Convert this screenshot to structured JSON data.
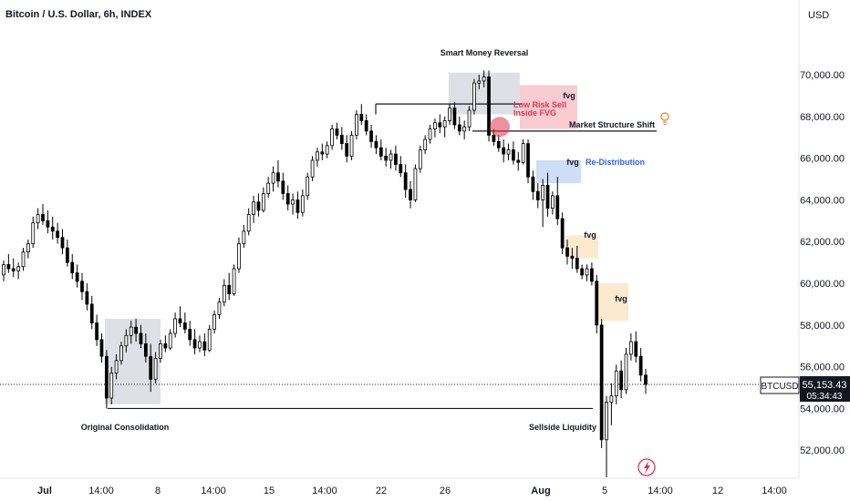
{
  "header": {
    "title": "Bitcoin / U.S. Dollar, 6h, INDEX",
    "currency": "USD"
  },
  "price_tag": {
    "symbol": "BTCUSD",
    "price": "55,153.43",
    "countdown": "05:34:43"
  },
  "colors": {
    "candle": "#000000",
    "fvg_red": "#f7c3c8",
    "fvg_blue": "#c5d7f7",
    "fvg_orange": "#fce6c8",
    "zone_gray": "#d8dbe0",
    "red": "#e0344d",
    "blue": "#2962ff",
    "orange": "#f57c1f"
  },
  "chart_data": {
    "type": "candlestick",
    "title": "Bitcoin / U.S. Dollar, 6h, INDEX",
    "ylim": [
      50600,
      72000
    ],
    "y_ticks": [
      "70,000.00",
      "68,000.00",
      "66,000.00",
      "64,000.00",
      "62,000.00",
      "60,000.00",
      "58,000.00",
      "56,000.00",
      "54,000.00",
      "52,000.00"
    ],
    "y_tick_values": [
      70000,
      68000,
      66000,
      64000,
      62000,
      60000,
      58000,
      56000,
      54000,
      52000
    ],
    "x_ticks": [
      "Jul",
      "14:00",
      "8",
      "14:00",
      "15",
      "14:00",
      "22",
      "26",
      "Aug",
      "5",
      "14:00",
      "12",
      "14:00"
    ],
    "current_price": 55153.43,
    "candles": [
      [
        60400,
        61100,
        60100,
        60900
      ],
      [
        60900,
        61400,
        60500,
        60700
      ],
      [
        60700,
        61200,
        60300,
        60600
      ],
      [
        60600,
        61000,
        60200,
        60800
      ],
      [
        60800,
        61700,
        60600,
        61500
      ],
      [
        61500,
        62100,
        61200,
        61900
      ],
      [
        61900,
        63200,
        61700,
        62900
      ],
      [
        62900,
        63600,
        62600,
        63300
      ],
      [
        63300,
        63800,
        62800,
        63000
      ],
      [
        63000,
        63500,
        62400,
        62700
      ],
      [
        62700,
        63200,
        62100,
        62500
      ],
      [
        62500,
        62900,
        61900,
        62200
      ],
      [
        62200,
        62600,
        61400,
        61700
      ],
      [
        61700,
        62100,
        60800,
        61000
      ],
      [
        61000,
        61400,
        60200,
        60500
      ],
      [
        60500,
        60900,
        59800,
        60100
      ],
      [
        60100,
        60500,
        59200,
        59600
      ],
      [
        59600,
        60000,
        58700,
        59000
      ],
      [
        59000,
        59400,
        57800,
        58100
      ],
      [
        58100,
        58500,
        57000,
        57300
      ],
      [
        57300,
        57600,
        56200,
        56500
      ],
      [
        56500,
        56800,
        54000,
        54500
      ],
      [
        54500,
        56000,
        54200,
        55700
      ],
      [
        55700,
        56600,
        55400,
        56300
      ],
      [
        56300,
        57200,
        56100,
        57000
      ],
      [
        57000,
        57800,
        56700,
        57500
      ],
      [
        57500,
        58200,
        57100,
        57900
      ],
      [
        57900,
        58300,
        57200,
        57600
      ],
      [
        57600,
        58000,
        56900,
        57100
      ],
      [
        57100,
        57600,
        56200,
        56500
      ],
      [
        56500,
        57100,
        54800,
        55400
      ],
      [
        55400,
        56700,
        55200,
        56400
      ],
      [
        56400,
        57300,
        56200,
        57100
      ],
      [
        57100,
        57500,
        56700,
        56900
      ],
      [
        56900,
        57800,
        56800,
        57600
      ],
      [
        57600,
        58600,
        57400,
        58300
      ],
      [
        58300,
        58900,
        57900,
        58100
      ],
      [
        58100,
        58600,
        57600,
        57800
      ],
      [
        57800,
        58200,
        57000,
        57300
      ],
      [
        57300,
        57800,
        56600,
        56900
      ],
      [
        56900,
        57500,
        56700,
        57200
      ],
      [
        57200,
        57600,
        56500,
        56800
      ],
      [
        56800,
        58000,
        56700,
        57800
      ],
      [
        57800,
        58700,
        57600,
        58500
      ],
      [
        58500,
        59300,
        58300,
        59100
      ],
      [
        59100,
        60200,
        58900,
        59900
      ],
      [
        59900,
        60500,
        59200,
        59500
      ],
      [
        59500,
        60900,
        59400,
        60700
      ],
      [
        60700,
        62200,
        60500,
        61900
      ],
      [
        61900,
        62800,
        61700,
        62500
      ],
      [
        62500,
        63600,
        62300,
        63300
      ],
      [
        63300,
        64200,
        62900,
        63900
      ],
      [
        63900,
        64300,
        63200,
        63500
      ],
      [
        63500,
        64600,
        63400,
        64300
      ],
      [
        64300,
        65100,
        64100,
        64800
      ],
      [
        64800,
        65600,
        64400,
        65300
      ],
      [
        65300,
        65900,
        64600,
        64900
      ],
      [
        64900,
        65300,
        64000,
        64300
      ],
      [
        64300,
        64700,
        63500,
        63800
      ],
      [
        63800,
        64300,
        63300,
        64000
      ],
      [
        64000,
        64400,
        63100,
        63400
      ],
      [
        63400,
        64500,
        63200,
        64200
      ],
      [
        64200,
        65300,
        64000,
        65100
      ],
      [
        65100,
        66100,
        64900,
        65900
      ],
      [
        65900,
        66500,
        65600,
        66300
      ],
      [
        66300,
        66700,
        65900,
        66200
      ],
      [
        66200,
        66800,
        66000,
        66600
      ],
      [
        66600,
        67600,
        66400,
        67400
      ],
      [
        67400,
        67700,
        66900,
        67100
      ],
      [
        67100,
        67500,
        66400,
        66700
      ],
      [
        66700,
        67100,
        65800,
        66100
      ],
      [
        66100,
        67300,
        65900,
        67100
      ],
      [
        67100,
        68300,
        66900,
        68100
      ],
      [
        68100,
        68600,
        67600,
        67800
      ],
      [
        67800,
        68100,
        67100,
        67300
      ],
      [
        67300,
        67600,
        66500,
        66800
      ],
      [
        66800,
        67100,
        66200,
        66500
      ],
      [
        66500,
        66900,
        65900,
        66100
      ],
      [
        66100,
        66500,
        65600,
        65900
      ],
      [
        65900,
        66400,
        65500,
        66200
      ],
      [
        66200,
        66600,
        65400,
        65700
      ],
      [
        65700,
        66100,
        65100,
        65300
      ],
      [
        65300,
        65700,
        64100,
        64500
      ],
      [
        64500,
        64900,
        63600,
        64000
      ],
      [
        64000,
        65700,
        63900,
        65500
      ],
      [
        65500,
        66600,
        65300,
        66400
      ],
      [
        66400,
        67100,
        66200,
        66900
      ],
      [
        66900,
        67600,
        66700,
        67400
      ],
      [
        67400,
        67900,
        67000,
        67700
      ],
      [
        67700,
        68100,
        67200,
        67500
      ],
      [
        67500,
        68000,
        67000,
        67800
      ],
      [
        67800,
        68600,
        67600,
        68400
      ],
      [
        68400,
        68700,
        67400,
        67600
      ],
      [
        67600,
        68000,
        67100,
        67300
      ],
      [
        67300,
        67800,
        66900,
        67500
      ],
      [
        67500,
        68500,
        67300,
        68300
      ],
      [
        68300,
        69800,
        68100,
        69600
      ],
      [
        69600,
        70000,
        69300,
        69700
      ],
      [
        69700,
        70200,
        69400,
        69900
      ],
      [
        69900,
        70200,
        66800,
        67100
      ],
      [
        67100,
        67400,
        66600,
        66800
      ],
      [
        66800,
        67100,
        66300,
        66500
      ],
      [
        66500,
        66900,
        65800,
        66200
      ],
      [
        66200,
        66700,
        65900,
        66400
      ],
      [
        66400,
        66800,
        65700,
        65900
      ],
      [
        65900,
        66300,
        65400,
        65800
      ],
      [
        65800,
        66900,
        65700,
        66700
      ],
      [
        66700,
        66900,
        64800,
        65100
      ],
      [
        65100,
        65400,
        64000,
        64400
      ],
      [
        64400,
        64800,
        63600,
        64000
      ],
      [
        64000,
        65000,
        62700,
        64700
      ],
      [
        64700,
        65300,
        63200,
        63600
      ],
      [
        63600,
        64400,
        63300,
        64200
      ],
      [
        64200,
        65100,
        62800,
        63100
      ],
      [
        63100,
        63400,
        61400,
        61700
      ],
      [
        61700,
        62100,
        60900,
        61300
      ],
      [
        61300,
        61700,
        60700,
        61200
      ],
      [
        61200,
        61800,
        60500,
        60700
      ],
      [
        60700,
        60900,
        60200,
        60400
      ],
      [
        60400,
        60900,
        60100,
        60700
      ],
      [
        60700,
        61000,
        59900,
        60100
      ],
      [
        60100,
        60400,
        57600,
        58000
      ],
      [
        58000,
        58300,
        52100,
        52500
      ],
      [
        52500,
        54600,
        50700,
        54300
      ],
      [
        54300,
        55200,
        53200,
        54600
      ],
      [
        54600,
        56100,
        54200,
        55800
      ],
      [
        55800,
        56300,
        54500,
        54900
      ],
      [
        54900,
        56900,
        54700,
        56600
      ],
      [
        56600,
        57600,
        56300,
        57200
      ],
      [
        57200,
        57700,
        56200,
        56500
      ],
      [
        56500,
        56900,
        55300,
        55600
      ],
      [
        55600,
        55900,
        54700,
        55153
      ]
    ],
    "annotations": {
      "smart_money": "Smart Money Reversal",
      "fvg1": "fvg",
      "low_risk_1": "Low Risk Sell",
      "low_risk_2": "Inside FVG",
      "mss": "Market Structure Shift",
      "fvg2": "fvg",
      "redist": "Re-Distribution",
      "fvg3": "fvg",
      "fvg4": "fvg",
      "orig_cons": "Original Consolidation",
      "sellside": "Sellside Liquidity"
    }
  }
}
